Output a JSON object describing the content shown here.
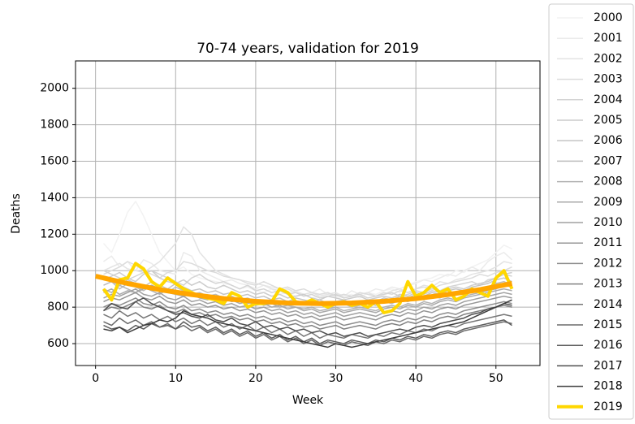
{
  "chart_data": {
    "type": "line",
    "title": "70-74 years, validation for 2019",
    "x_label": "Week",
    "y_label": "Deaths",
    "x": [
      1,
      2,
      3,
      4,
      5,
      6,
      7,
      8,
      9,
      10,
      11,
      12,
      13,
      14,
      15,
      16,
      17,
      18,
      19,
      20,
      21,
      22,
      23,
      24,
      25,
      26,
      27,
      28,
      29,
      30,
      31,
      32,
      33,
      34,
      35,
      36,
      37,
      38,
      39,
      40,
      41,
      42,
      43,
      44,
      45,
      46,
      47,
      48,
      49,
      50,
      51,
      52
    ],
    "xlim": [
      -2.5,
      55.5
    ],
    "xticks": [
      0,
      10,
      20,
      30,
      40,
      50
    ],
    "ylim": [
      480,
      2150
    ],
    "yticks": [
      600,
      800,
      1000,
      1200,
      1400,
      1600,
      1800,
      2000
    ],
    "grid": true,
    "legend": "outside-right",
    "series": [
      {
        "name": "2000",
        "color": "#f2f2f2",
        "width": 1.5,
        "values": [
          1150,
          1100,
          1200,
          1320,
          1380,
          1300,
          1200,
          1100,
          1050,
          1000,
          1020,
          980,
          960,
          950,
          940,
          930,
          920,
          900,
          910,
          890,
          880,
          900,
          870,
          880,
          860,
          870,
          850,
          860,
          880,
          850,
          860,
          870,
          850,
          880,
          870,
          890,
          900,
          880,
          920,
          940,
          950,
          960,
          980,
          970,
          1000,
          990,
          1020,
          1040,
          1060,
          1100,
          1140,
          1120
        ]
      },
      {
        "name": "2001",
        "color": "#ebebeb",
        "width": 1.5,
        "values": [
          1050,
          1080,
          1020,
          1050,
          1000,
          1060,
          1040,
          1000,
          990,
          980,
          1100,
          1080,
          1000,
          980,
          960,
          940,
          950,
          930,
          920,
          900,
          920,
          910,
          900,
          880,
          890,
          870,
          880,
          900,
          870,
          880,
          860,
          890,
          870,
          880,
          900,
          890,
          910,
          900,
          920,
          930,
          950,
          940,
          960,
          980,
          970,
          1000,
          1020,
          1000,
          1050,
          1080,
          1100,
          1060
        ]
      },
      {
        "name": "2002",
        "color": "#e3e3e3",
        "width": 1.5,
        "values": [
          1000,
          1020,
          1040,
          1010,
          1000,
          990,
          1020,
          1050,
          1100,
          1150,
          1240,
          1200,
          1100,
          1050,
          1000,
          980,
          960,
          950,
          940,
          930,
          920,
          900,
          890,
          900,
          880,
          870,
          880,
          860,
          870,
          880,
          850,
          860,
          870,
          880,
          860,
          870,
          890,
          900,
          880,
          900,
          920,
          910,
          940,
          930,
          950,
          960,
          980,
          990,
          1000,
          1020,
          1050,
          1040
        ]
      },
      {
        "name": "2003",
        "color": "#dcdcdc",
        "width": 1.5,
        "values": [
          980,
          1000,
          1020,
          1050,
          1030,
          1000,
          980,
          960,
          990,
          1000,
          1050,
          1040,
          1020,
          1000,
          990,
          970,
          960,
          950,
          930,
          920,
          940,
          920,
          900,
          910,
          890,
          900,
          880,
          870,
          880,
          860,
          870,
          860,
          880,
          870,
          860,
          880,
          870,
          890,
          880,
          900,
          910,
          900,
          920,
          930,
          940,
          950,
          960,
          980,
          970,
          990,
          1000,
          1020
        ]
      },
      {
        "name": "2004",
        "color": "#d4d4d4",
        "width": 1.5,
        "values": [
          1000,
          980,
          960,
          950,
          970,
          990,
          1000,
          980,
          960,
          940,
          920,
          960,
          980,
          950,
          930,
          940,
          920,
          900,
          920,
          890,
          900,
          880,
          890,
          870,
          880,
          860,
          870,
          850,
          860,
          870,
          850,
          860,
          870,
          850,
          860,
          870,
          880,
          860,
          870,
          890,
          880,
          900,
          890,
          910,
          920,
          930,
          940,
          920,
          950,
          960,
          980,
          970
        ]
      },
      {
        "name": "2005",
        "color": "#cccccc",
        "width": 1.5,
        "values": [
          950,
          970,
          990,
          960,
          940,
          980,
          1000,
          960,
          940,
          930,
          950,
          920,
          940,
          910,
          900,
          920,
          900,
          880,
          890,
          870,
          880,
          860,
          870,
          850,
          860,
          870,
          850,
          840,
          860,
          850,
          840,
          850,
          860,
          840,
          850,
          860,
          850,
          870,
          860,
          880,
          870,
          890,
          880,
          900,
          910,
          900,
          920,
          930,
          940,
          960,
          980,
          990
        ]
      },
      {
        "name": "2006",
        "color": "#c4c4c4",
        "width": 1.5,
        "values": [
          960,
          940,
          920,
          950,
          930,
          910,
          940,
          920,
          900,
          930,
          910,
          890,
          900,
          880,
          890,
          870,
          880,
          860,
          870,
          850,
          860,
          840,
          850,
          830,
          850,
          840,
          830,
          840,
          820,
          830,
          840,
          820,
          830,
          840,
          830,
          850,
          840,
          860,
          850,
          870,
          860,
          880,
          870,
          890,
          900,
          890,
          910,
          920,
          930,
          950,
          960,
          940
        ]
      },
      {
        "name": "2007",
        "color": "#bcbcbc",
        "width": 1.5,
        "values": [
          920,
          940,
          900,
          930,
          910,
          890,
          920,
          900,
          880,
          910,
          890,
          870,
          880,
          860,
          870,
          850,
          860,
          840,
          850,
          830,
          840,
          820,
          830,
          810,
          830,
          820,
          810,
          820,
          800,
          810,
          820,
          800,
          810,
          820,
          810,
          830,
          820,
          840,
          830,
          850,
          840,
          860,
          850,
          870,
          880,
          870,
          890,
          900,
          910,
          930,
          940,
          920
        ]
      },
      {
        "name": "2008",
        "color": "#b3b3b3",
        "width": 1.5,
        "values": [
          900,
          880,
          920,
          900,
          880,
          910,
          890,
          870,
          900,
          880,
          860,
          870,
          850,
          860,
          840,
          850,
          830,
          840,
          820,
          830,
          810,
          820,
          800,
          810,
          800,
          790,
          800,
          780,
          790,
          800,
          780,
          790,
          800,
          790,
          780,
          800,
          810,
          800,
          820,
          810,
          830,
          820,
          840,
          850,
          840,
          860,
          870,
          880,
          890,
          900,
          920,
          910
        ]
      },
      {
        "name": "2009",
        "color": "#aaaaaa",
        "width": 1.5,
        "values": [
          880,
          900,
          870,
          890,
          880,
          900,
          920,
          900,
          880,
          870,
          860,
          880,
          850,
          840,
          860,
          830,
          840,
          820,
          830,
          810,
          820,
          800,
          810,
          790,
          800,
          780,
          790,
          770,
          780,
          790,
          770,
          780,
          790,
          780,
          770,
          790,
          800,
          790,
          810,
          800,
          820,
          810,
          830,
          840,
          830,
          850,
          860,
          870,
          880,
          890,
          900,
          890
        ]
      },
      {
        "name": "2010",
        "color": "#a1a1a1",
        "width": 1.5,
        "values": [
          850,
          870,
          860,
          880,
          900,
          870,
          860,
          880,
          850,
          840,
          860,
          830,
          840,
          820,
          830,
          810,
          820,
          800,
          810,
          790,
          800,
          780,
          790,
          770,
          780,
          760,
          770,
          750,
          760,
          770,
          750,
          760,
          770,
          760,
          750,
          770,
          780,
          770,
          790,
          780,
          800,
          790,
          810,
          820,
          810,
          830,
          840,
          850,
          860,
          870,
          880,
          870
        ]
      },
      {
        "name": "2011",
        "color": "#979797",
        "width": 1.5,
        "values": [
          830,
          850,
          840,
          860,
          880,
          850,
          840,
          860,
          830,
          820,
          840,
          810,
          820,
          800,
          810,
          790,
          800,
          780,
          790,
          770,
          780,
          760,
          770,
          750,
          760,
          740,
          750,
          730,
          740,
          750,
          730,
          740,
          750,
          740,
          730,
          750,
          760,
          750,
          770,
          760,
          780,
          770,
          790,
          800,
          790,
          810,
          820,
          830,
          840,
          850,
          860,
          850
        ]
      },
      {
        "name": "2012",
        "color": "#8d8d8d",
        "width": 1.5,
        "values": [
          800,
          820,
          810,
          830,
          850,
          820,
          810,
          830,
          800,
          790,
          810,
          780,
          790,
          770,
          780,
          760,
          770,
          750,
          760,
          740,
          750,
          730,
          740,
          720,
          730,
          710,
          720,
          700,
          710,
          720,
          700,
          710,
          720,
          710,
          700,
          720,
          730,
          720,
          740,
          730,
          750,
          740,
          760,
          770,
          760,
          780,
          790,
          800,
          810,
          820,
          830,
          820
        ]
      },
      {
        "name": "2013",
        "color": "#828282",
        "width": 1.5,
        "values": [
          780,
          800,
          790,
          810,
          830,
          800,
          790,
          810,
          780,
          770,
          790,
          760,
          770,
          750,
          760,
          740,
          750,
          730,
          740,
          720,
          730,
          710,
          720,
          700,
          710,
          690,
          700,
          680,
          690,
          700,
          680,
          690,
          700,
          690,
          680,
          700,
          710,
          700,
          720,
          710,
          730,
          720,
          740,
          750,
          740,
          760,
          770,
          780,
          790,
          800,
          810,
          800
        ]
      },
      {
        "name": "2014",
        "color": "#777777",
        "width": 1.5,
        "values": [
          760,
          740,
          780,
          750,
          770,
          740,
          760,
          730,
          750,
          720,
          740,
          710,
          730,
          700,
          720,
          690,
          710,
          680,
          700,
          670,
          690,
          660,
          680,
          650,
          670,
          640,
          660,
          630,
          650,
          640,
          630,
          650,
          640,
          630,
          650,
          640,
          660,
          650,
          670,
          660,
          680,
          670,
          690,
          700,
          690,
          710,
          720,
          730,
          740,
          750,
          760,
          750
        ]
      },
      {
        "name": "2015",
        "color": "#6b6b6b",
        "width": 1.5,
        "values": [
          720,
          700,
          740,
          710,
          730,
          700,
          720,
          690,
          710,
          680,
          700,
          670,
          690,
          660,
          680,
          650,
          670,
          640,
          660,
          630,
          650,
          620,
          640,
          610,
          630,
          600,
          620,
          590,
          610,
          600,
          590,
          610,
          600,
          590,
          610,
          600,
          620,
          610,
          630,
          620,
          640,
          630,
          650,
          660,
          650,
          670,
          680,
          690,
          700,
          710,
          720,
          710
        ]
      },
      {
        "name": "2016",
        "color": "#5e5e5e",
        "width": 1.5,
        "values": [
          700,
          680,
          690,
          670,
          700,
          680,
          710,
          690,
          700,
          680,
          720,
          690,
          700,
          670,
          690,
          660,
          680,
          650,
          670,
          640,
          660,
          630,
          650,
          620,
          640,
          610,
          630,
          600,
          620,
          610,
          600,
          620,
          610,
          600,
          620,
          610,
          630,
          620,
          640,
          630,
          650,
          640,
          660,
          670,
          660,
          680,
          690,
          700,
          710,
          720,
          730,
          700
        ]
      },
      {
        "name": "2017",
        "color": "#4f4f4f",
        "width": 1.5,
        "values": [
          780,
          820,
          800,
          790,
          830,
          850,
          820,
          800,
          780,
          760,
          770,
          750,
          740,
          760,
          730,
          720,
          740,
          710,
          700,
          720,
          690,
          700,
          680,
          690,
          670,
          680,
          660,
          670,
          650,
          660,
          640,
          650,
          660,
          640,
          650,
          660,
          670,
          680,
          670,
          690,
          700,
          690,
          710,
          720,
          730,
          740,
          760,
          770,
          790,
          800,
          820,
          810
        ]
      },
      {
        "name": "2018",
        "color": "#3d3d3d",
        "width": 1.5,
        "values": [
          680,
          670,
          690,
          660,
          680,
          700,
          710,
          730,
          720,
          740,
          780,
          760,
          750,
          740,
          720,
          710,
          700,
          690,
          680,
          670,
          660,
          650,
          640,
          630,
          620,
          610,
          600,
          590,
          580,
          600,
          590,
          580,
          590,
          600,
          610,
          620,
          630,
          640,
          650,
          660,
          670,
          680,
          690,
          700,
          710,
          720,
          740,
          760,
          780,
          800,
          820,
          840
        ]
      },
      {
        "name": "2019",
        "color": "#ffd700",
        "width": 4,
        "values": [
          900,
          840,
          950,
          960,
          1040,
          1010,
          940,
          910,
          960,
          930,
          900,
          880,
          860,
          850,
          840,
          820,
          880,
          860,
          800,
          820,
          820,
          830,
          900,
          880,
          830,
          820,
          840,
          820,
          800,
          820,
          830,
          810,
          820,
          800,
          830,
          770,
          780,
          820,
          940,
          860,
          880,
          920,
          880,
          900,
          840,
          860,
          900,
          880,
          860,
          960,
          1000,
          900
        ]
      },
      {
        "color": "#ffa500",
        "width": 6,
        "x": [
          0,
          4,
          8,
          12,
          16,
          20,
          24,
          28,
          32,
          36,
          40,
          44,
          48,
          52
        ],
        "values": [
          970,
          930,
          896,
          869,
          847,
          832,
          823,
          820,
          823,
          832,
          847,
          869,
          896,
          930
        ]
      }
    ]
  }
}
